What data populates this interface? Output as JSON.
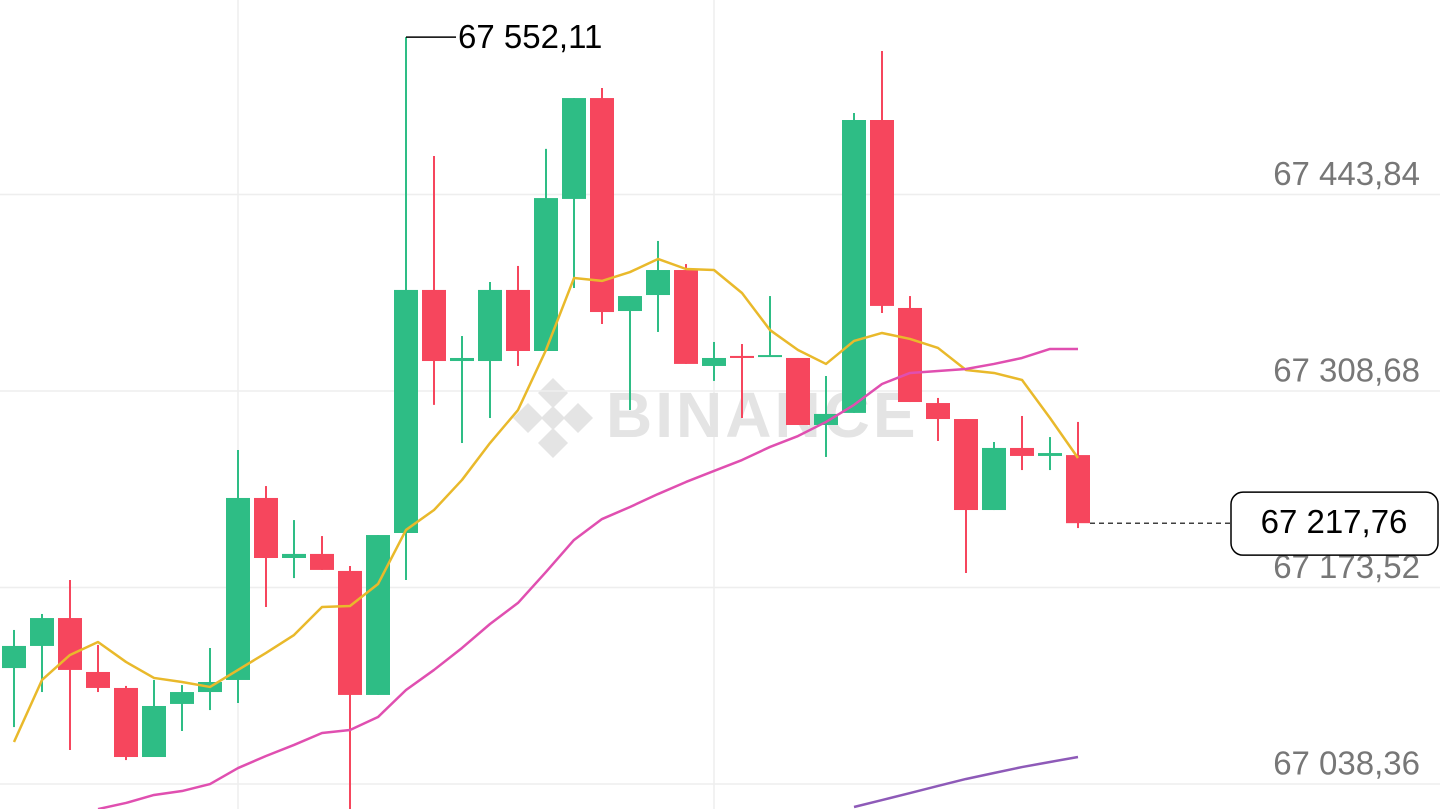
{
  "chart_data": {
    "type": "candlestick",
    "watermark": "BINANCE",
    "up_color": "#2ebd85",
    "down_color": "#f6465d",
    "open": [
      67118.1,
      67133.3,
      67152.5,
      67115.4,
      67104.4,
      67056.9,
      67093.4,
      67101.6,
      67109.9,
      67235.1,
      67193.8,
      67196.6,
      67184.9,
      67099.6,
      67211.0,
      67378.2,
      67329.3,
      67329.3,
      67378.2,
      67336.2,
      67440.8,
      67510.2,
      67363.7,
      67374.7,
      67391.9,
      67325.9,
      67332.8,
      67332.1,
      67331.4,
      67285.3,
      67293.6,
      67495.1,
      67365.8,
      67300.4,
      67289.4,
      67226.8,
      67269.5,
      67264.0,
      67264.6
    ],
    "high": [
      67144.3,
      67155.3,
      67178.7,
      67134.0,
      67105.8,
      67109.9,
      67106.4,
      67131.9,
      67268.1,
      67243.3,
      67219.9,
      67208.9,
      67188.3,
      67209.6,
      67552.11,
      67470.3,
      67346.5,
      67383.7,
      67394.7,
      67475.2,
      67510.2,
      67517.1,
      67374.0,
      67411.9,
      67396.0,
      67342.4,
      67341.0,
      67374.0,
      67331.4,
      67319.0,
      67499.9,
      67542.6,
      67374.0,
      67303.9,
      67289.4,
      67273.6,
      67291.5,
      67277.0,
      67287.4
    ],
    "low": [
      67077.5,
      67101.6,
      67061.7,
      67101.6,
      67054.8,
      67056.9,
      67074.8,
      67089.2,
      67094.1,
      67160.1,
      67180.0,
      67185.6,
      67021.1,
      67099.6,
      67178.7,
      67299.1,
      67272.9,
      67290.1,
      67325.9,
      67336.2,
      67379.5,
      67354.8,
      67295.6,
      67349.3,
      67327.3,
      67315.6,
      67290.1,
      67332.1,
      67285.3,
      67263.3,
      67293.6,
      67362.3,
      67301.1,
      67274.3,
      67183.5,
      67226.8,
      67254.3,
      67254.3,
      67214.4
    ],
    "close": [
      67133.3,
      67152.5,
      67116.8,
      67104.4,
      67056.9,
      67092.0,
      67101.6,
      67108.5,
      67235.1,
      67193.8,
      67196.6,
      67185.6,
      67099.6,
      67209.6,
      67378.2,
      67329.3,
      67331.4,
      67378.2,
      67336.2,
      67441.4,
      67510.2,
      67363.0,
      67374.0,
      67391.9,
      67327.3,
      67331.4,
      67331.4,
      67333.4,
      67285.3,
      67292.9,
      67495.1,
      67367.2,
      67301.1,
      67289.4,
      67226.8,
      67269.5,
      67264.0,
      67266.0,
      67217.76
    ],
    "moving_averages": [
      {
        "color": "#e9b92b",
        "values": [
          67067.2,
          67109.9,
          67127.1,
          67136.0,
          67122.3,
          67111.3,
          67108.5,
          67105.1,
          67116.8,
          67128.5,
          67140.8,
          67160.1,
          67160.8,
          67175.9,
          67213.1,
          67226.8,
          67247.5,
          67272.9,
          67295.6,
          67336.9,
          67386.4,
          67384.4,
          67390.5,
          67399.5,
          67392.6,
          67391.9,
          67376.1,
          67350.6,
          67336.9,
          67327.3,
          67343.1,
          67348.6,
          67344.5,
          67338.3,
          67323.1,
          67321.1,
          67316.3,
          67290.1,
          67262.6
        ]
      },
      {
        "color": "#e04fb0",
        "values": [
          null,
          null,
          null,
          67021.1,
          67025.3,
          67030.8,
          67033.5,
          67038.3,
          67049.3,
          67057.6,
          67065.2,
          67073.4,
          67075.5,
          67084.4,
          67103.0,
          67116.8,
          67131.9,
          67148.4,
          67162.9,
          67184.2,
          67206.2,
          67220.6,
          67228.9,
          67237.8,
          67246.1,
          67253.7,
          67261.2,
          67270.2,
          67277.7,
          67287.4,
          67299.1,
          67313.5,
          67321.1,
          67322.4,
          67323.8,
          67327.3,
          67331.4,
          67337.6,
          67337.6
        ]
      },
      {
        "color": "#8e5ab8",
        "values": [
          null,
          null,
          null,
          null,
          null,
          null,
          null,
          null,
          null,
          null,
          null,
          null,
          null,
          null,
          null,
          null,
          null,
          null,
          null,
          null,
          null,
          null,
          null,
          null,
          null,
          null,
          null,
          null,
          null,
          null,
          67022.5,
          67027.3,
          67032.1,
          67037.0,
          67041.8,
          67045.9,
          67050.0,
          67053.5,
          67056.9
        ]
      }
    ],
    "ylim": [
      67021.14,
      67577.65
    ],
    "yticks": [
      {
        "value": 67443.84,
        "label": "67 443,84"
      },
      {
        "value": 67308.68,
        "label": "67 308,68"
      },
      {
        "value": 67173.52,
        "label": "67 173,52"
      },
      {
        "value": 67038.36,
        "label": "67 038,36"
      }
    ],
    "grid": true,
    "high_label": {
      "value": 67552.11,
      "label": "67 552,11"
    },
    "last_price": {
      "value": 67217.76,
      "label": "67 217,76"
    }
  }
}
